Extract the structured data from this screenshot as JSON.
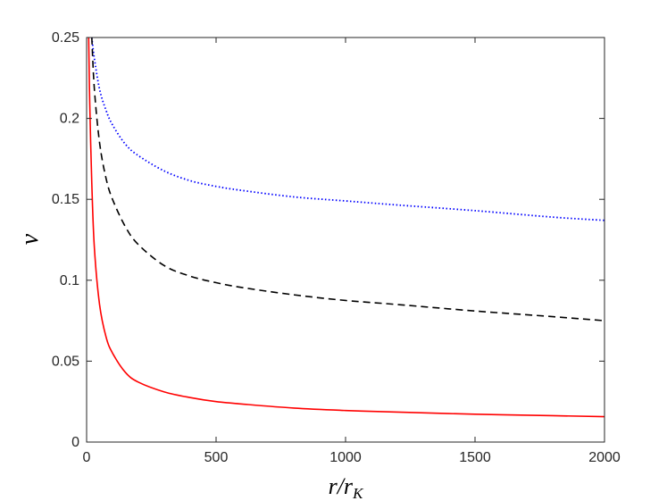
{
  "chart_data": {
    "type": "line",
    "xlabel": "r/r_K",
    "ylabel": "v",
    "xlim": [
      0,
      2000
    ],
    "ylim": [
      0,
      0.25
    ],
    "xticks": [
      0,
      500,
      1000,
      1500,
      2000
    ],
    "yticks": [
      0,
      0.05,
      0.1,
      0.15,
      0.2,
      0.25
    ],
    "xtick_labels": [
      "0",
      "500",
      "1000",
      "1500",
      "2000"
    ],
    "ytick_labels": [
      "0",
      "0.05",
      "0.1",
      "0.15",
      "0.2",
      "0.25"
    ],
    "grid": false,
    "legend": "none",
    "series": [
      {
        "style": "dotted",
        "color": "#0000ff",
        "x": [
          20,
          30,
          50,
          75,
          100,
          150,
          200,
          300,
          400,
          500,
          600,
          800,
          1000,
          1200,
          1500,
          1800,
          2000
        ],
        "y": [
          0.25,
          0.237,
          0.218,
          0.205,
          0.196,
          0.184,
          0.177,
          0.1675,
          0.1615,
          0.158,
          0.1555,
          0.1515,
          0.149,
          0.1465,
          0.143,
          0.139,
          0.137
        ]
      },
      {
        "style": "dashed",
        "color": "#000000",
        "x": [
          20,
          30,
          50,
          75,
          100,
          150,
          200,
          300,
          400,
          500,
          600,
          800,
          1000,
          1200,
          1500,
          1800,
          2000
        ],
        "y": [
          0.25,
          0.218,
          0.185,
          0.163,
          0.15,
          0.133,
          0.122,
          0.109,
          0.1025,
          0.0985,
          0.0955,
          0.091,
          0.0875,
          0.085,
          0.081,
          0.0775,
          0.075
        ]
      },
      {
        "style": "solid",
        "color": "#ff0000",
        "x": [
          8,
          12,
          20,
          30,
          50,
          75,
          100,
          150,
          200,
          300,
          400,
          500,
          600,
          800,
          1000,
          1200,
          1500,
          1800,
          2000
        ],
        "y": [
          0.25,
          0.21,
          0.16,
          0.12,
          0.085,
          0.065,
          0.055,
          0.043,
          0.037,
          0.031,
          0.0275,
          0.025,
          0.0235,
          0.021,
          0.0195,
          0.0185,
          0.0172,
          0.0163,
          0.0157
        ]
      }
    ]
  }
}
